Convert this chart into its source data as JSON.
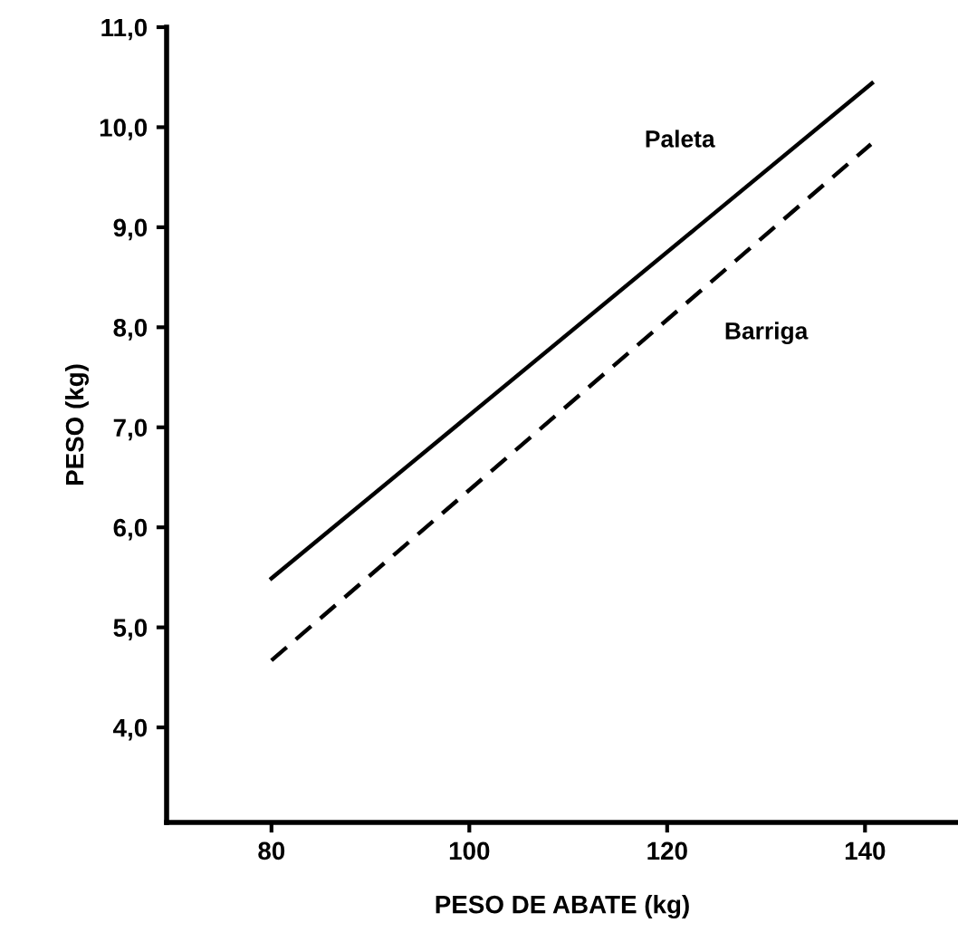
{
  "chart_data": {
    "type": "line",
    "xlabel": "PESO DE ABATE (kg)",
    "ylabel": "PESO (kg)",
    "xlim": [
      69.4,
      149.4
    ],
    "xticks": [
      80,
      100,
      120,
      140
    ],
    "ylim": [
      3.05,
      11
    ],
    "yticks": [
      {
        "value": 4,
        "label": "4,0"
      },
      {
        "value": 5,
        "label": "5,0"
      },
      {
        "value": 6,
        "label": "6,0"
      },
      {
        "value": 7,
        "label": "7,0"
      },
      {
        "value": 8,
        "label": "8,0"
      },
      {
        "value": 9,
        "label": "9,0"
      },
      {
        "value": 10,
        "label": "10,0"
      },
      {
        "value": 11,
        "label": "11,0"
      }
    ],
    "grid": false,
    "legend": false,
    "marker": "none",
    "series": [
      {
        "name": "Paleta",
        "color": "#000000",
        "line_style": "solid",
        "x": [
          80,
          140.7
        ],
        "values": [
          5.49,
          10.44
        ]
      },
      {
        "name": "Barriga",
        "color": "#000000",
        "line_style": "dashed",
        "x": [
          80,
          140.6
        ],
        "values": [
          4.67,
          9.83
        ]
      }
    ]
  }
}
